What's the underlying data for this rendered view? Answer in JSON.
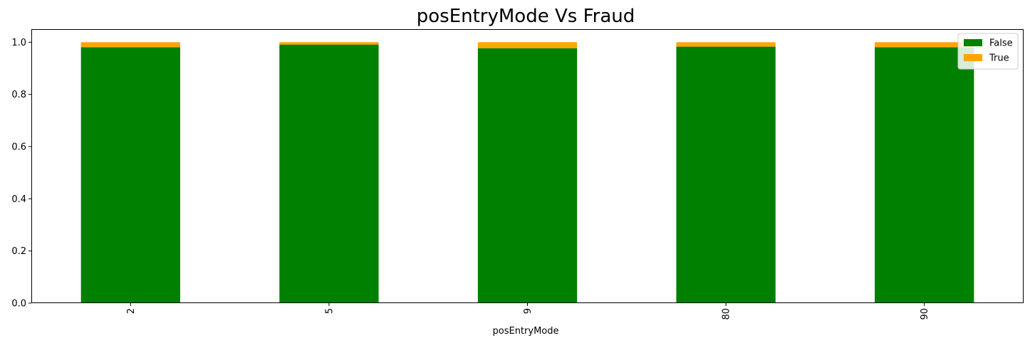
{
  "chart_data": {
    "type": "bar",
    "stacked": true,
    "title": "posEntryMode Vs Fraud",
    "xlabel": "posEntryMode",
    "ylabel": "",
    "categories": [
      "2",
      "5",
      "9",
      "80",
      "90"
    ],
    "series": [
      {
        "name": "False",
        "color": "#008000",
        "values": [
          0.981,
          0.991,
          0.977,
          0.983,
          0.981
        ]
      },
      {
        "name": "True",
        "color": "#FFA500",
        "values": [
          0.019,
          0.009,
          0.023,
          0.017,
          0.019
        ]
      }
    ],
    "ylim": [
      0,
      1.05
    ],
    "yticks": [
      "0.0",
      "0.2",
      "0.4",
      "0.6",
      "0.8",
      "1.0"
    ],
    "ytick_values": [
      0,
      0.2,
      0.4,
      0.6,
      0.8,
      1.0
    ],
    "xtick_rotation": "vertical",
    "grid": false,
    "legend_position": "top-right"
  }
}
